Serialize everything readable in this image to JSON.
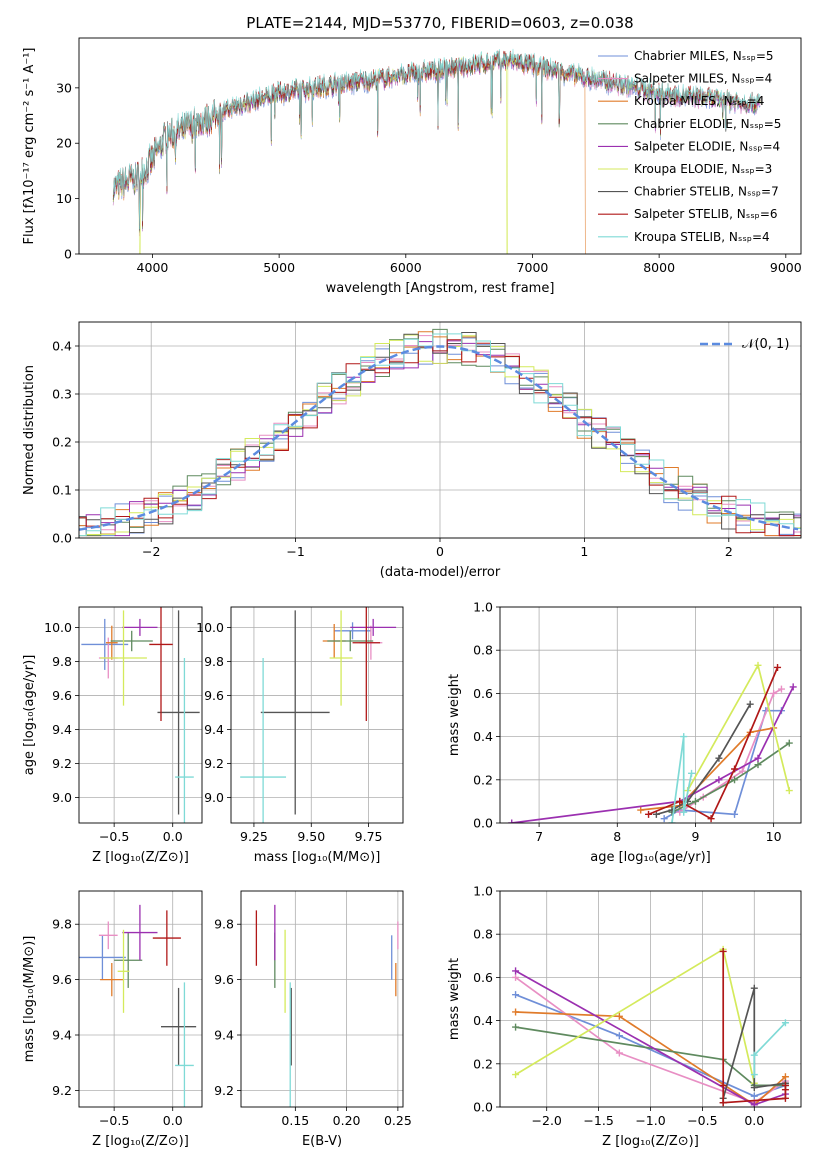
{
  "title": "PLATE=2144, MJD=53770, FIBERID=0603, z=0.038",
  "colors": {
    "chabrier_miles": "#6f8fd8",
    "salpeter_miles": "#e88fc4",
    "kroupa_miles": "#e07b2a",
    "chabrier_elodie": "#5f8a5f",
    "salpeter_elodie": "#9b30b0",
    "kroupa_elodie": "#d4ea5c",
    "chabrier_stelib": "#555555",
    "salpeter_stelib": "#b01818",
    "kroupa_stelib": "#7fdad6",
    "normal_curve": "#5b8be0"
  },
  "chart_data": [
    {
      "id": "spectrum",
      "type": "line",
      "xlabel": "wavelength [Angstrom, rest frame]",
      "ylabel": "Flux [fλ10⁻¹⁷ erg cm⁻² s⁻¹ A⁻¹]",
      "xlim": [
        3420,
        9120
      ],
      "ylim": [
        0,
        39
      ],
      "xticks": [
        "4000",
        "5000",
        "6000",
        "7000",
        "8000",
        "9000"
      ],
      "yticks": [
        "0",
        "10",
        "20",
        "30"
      ],
      "legend_position": "top-right",
      "legend": [
        "Chabrier MILES, Nₛₛₚ=5",
        "Salpeter MILES, Nₛₛₚ=4",
        "Kroupa MILES, Nₛₛₚ=4",
        "Chabrier ELODIE, Nₛₛₚ=5",
        "Salpeter ELODIE, Nₛₛₚ=4",
        "Kroupa ELODIE, Nₛₛₚ=3",
        "Chabrier STELIB, Nₛₛₚ=7",
        "Salpeter STELIB, Nₛₛₚ=6",
        "Kroupa STELIB, Nₛₛₚ=4"
      ],
      "continuum": {
        "x": [
          3700,
          3800,
          3900,
          4000,
          4100,
          4300,
          4500,
          4700,
          5000,
          5300,
          5600,
          5900,
          6200,
          6500,
          6800,
          7000,
          7200,
          7400,
          7600,
          7800,
          8000,
          8200,
          8400,
          8600,
          8800
        ],
        "y": [
          12,
          13,
          14,
          17,
          21,
          23,
          25,
          27,
          29,
          30,
          31,
          32,
          33,
          34,
          35,
          34,
          33,
          32,
          31,
          30,
          29,
          28.5,
          28,
          27.5,
          27
        ]
      },
      "cutoffs": [
        {
          "series": "Kroupa ELODIE",
          "x": 3900
        },
        {
          "series": "Kroupa ELODIE",
          "x": 6800
        },
        {
          "series": "Kroupa MILES",
          "x": 7420
        }
      ]
    },
    {
      "id": "residuals",
      "type": "line",
      "xlabel": "(data-model)/error",
      "ylabel": "Normed distribution",
      "xlim": [
        -2.5,
        2.5
      ],
      "ylim": [
        0,
        0.45
      ],
      "xticks": [
        "−2",
        "−1",
        "0",
        "1",
        "2"
      ],
      "yticks": [
        "0.0",
        "0.1",
        "0.2",
        "0.3",
        "0.4"
      ],
      "legend": [
        "𝒩(0, 1)"
      ],
      "legend_position": "top-right",
      "bin_width": 0.1,
      "grid": true
    },
    {
      "id": "age_vs_Z",
      "type": "scatter",
      "xlabel": "Z [log₁₀(Z/Z⊙)]",
      "ylabel": "age  [log₁₀(age/yr)]",
      "xlim": [
        -0.8,
        0.25
      ],
      "ylim": [
        8.85,
        10.12
      ],
      "xticks": [
        "−0.5",
        "0.0"
      ],
      "yticks": [
        "9.0",
        "9.2",
        "9.4",
        "9.6",
        "9.8",
        "10.0"
      ],
      "grid": true,
      "points": [
        {
          "series": "Chabrier MILES",
          "x": -0.58,
          "y": 9.9,
          "xerr": 0.2,
          "yerr": 0.15
        },
        {
          "series": "Salpeter MILES",
          "x": -0.55,
          "y": 9.82,
          "xerr": 0.08,
          "yerr": 0.12
        },
        {
          "series": "Kroupa MILES",
          "x": -0.52,
          "y": 9.91,
          "xerr": 0.05,
          "yerr": 0.1
        },
        {
          "series": "Chabrier ELODIE",
          "x": -0.35,
          "y": 9.92,
          "xerr": 0.18,
          "yerr": 0.06
        },
        {
          "series": "Salpeter ELODIE",
          "x": -0.28,
          "y": 10.0,
          "xerr": 0.15,
          "yerr": 0.05
        },
        {
          "series": "Kroupa ELODIE",
          "x": -0.42,
          "y": 9.82,
          "xerr": 0.2,
          "yerr": 0.28
        },
        {
          "series": "Chabrier STELIB",
          "x": 0.05,
          "y": 9.5,
          "xerr": 0.18,
          "yerr": 0.6
        },
        {
          "series": "Salpeter STELIB",
          "x": -0.1,
          "y": 9.9,
          "xerr": 0.1,
          "yerr": 0.45
        },
        {
          "series": "Kroupa STELIB",
          "x": 0.1,
          "y": 9.12,
          "xerr": 0.08,
          "yerr": 0.7
        }
      ]
    },
    {
      "id": "age_vs_mass",
      "type": "scatter",
      "xlabel": "mass [log₁₀(M/M⊙)]",
      "ylabel": "",
      "xlim": [
        9.15,
        9.9
      ],
      "ylim": [
        8.85,
        10.12
      ],
      "xticks": [
        "9.25",
        "9.50",
        "9.75"
      ],
      "yticks": [
        "9.0",
        "9.2",
        "9.4",
        "9.6",
        "9.8",
        "10.0"
      ],
      "grid": true,
      "points": [
        {
          "series": "Chabrier MILES",
          "x": 9.68,
          "y": 9.98,
          "xerr": 0.08,
          "yerr": 0.05
        },
        {
          "series": "Salpeter MILES",
          "x": 9.76,
          "y": 9.91,
          "xerr": 0.05,
          "yerr": 0.1
        },
        {
          "series": "Kroupa MILES",
          "x": 9.6,
          "y": 9.92,
          "xerr": 0.05,
          "yerr": 0.1
        },
        {
          "series": "Chabrier ELODIE",
          "x": 9.67,
          "y": 9.92,
          "xerr": 0.1,
          "yerr": 0.06
        },
        {
          "series": "Salpeter ELODIE",
          "x": 9.77,
          "y": 10.0,
          "xerr": 0.1,
          "yerr": 0.05
        },
        {
          "series": "Kroupa ELODIE",
          "x": 9.63,
          "y": 9.82,
          "xerr": 0.05,
          "yerr": 0.28
        },
        {
          "series": "Chabrier STELIB",
          "x": 9.43,
          "y": 9.5,
          "xerr": 0.15,
          "yerr": 0.6
        },
        {
          "series": "Salpeter STELIB",
          "x": 9.74,
          "y": 9.91,
          "xerr": 0.06,
          "yerr": 0.46
        },
        {
          "series": "Kroupa STELIB",
          "x": 9.29,
          "y": 9.12,
          "xerr": 0.1,
          "yerr": 0.7
        }
      ]
    },
    {
      "id": "weight_vs_age",
      "type": "line",
      "xlabel": "age  [log₁₀(age/yr)]",
      "ylabel": "mass weight",
      "xlim": [
        6.5,
        10.35
      ],
      "ylim": [
        0,
        1
      ],
      "xticks": [
        "7",
        "8",
        "9",
        "10"
      ],
      "yticks": [
        "0.0",
        "0.2",
        "0.4",
        "0.6",
        "0.8",
        "1.0"
      ],
      "grid": true,
      "series": [
        {
          "name": "Chabrier MILES",
          "x": [
            8.6,
            8.8,
            9.5,
            9.9,
            10.1
          ],
          "y": [
            0.02,
            0.06,
            0.04,
            0.52,
            0.52
          ]
        },
        {
          "name": "Salpeter MILES",
          "x": [
            8.8,
            9.1,
            9.6,
            10.0,
            10.1
          ],
          "y": [
            0.05,
            0.12,
            0.24,
            0.6,
            0.62
          ]
        },
        {
          "name": "Kroupa MILES",
          "x": [
            8.3,
            8.8,
            9.7,
            10.0
          ],
          "y": [
            0.06,
            0.08,
            0.42,
            0.44
          ]
        },
        {
          "name": "Chabrier ELODIE",
          "x": [
            8.7,
            9.0,
            9.5,
            9.8,
            10.2
          ],
          "y": [
            0.05,
            0.1,
            0.2,
            0.27,
            0.37
          ]
        },
        {
          "name": "Salpeter ELODIE",
          "x": [
            6.65,
            8.8,
            9.3,
            9.8,
            10.25
          ],
          "y": [
            0.0,
            0.1,
            0.2,
            0.3,
            0.63
          ]
        },
        {
          "name": "Kroupa ELODIE",
          "x": [
            8.9,
            9.8,
            10.2
          ],
          "y": [
            0.15,
            0.73,
            0.15
          ]
        },
        {
          "name": "Chabrier STELIB",
          "x": [
            8.5,
            8.7,
            8.9,
            9.3,
            9.7
          ],
          "y": [
            0.04,
            0.06,
            0.1,
            0.3,
            0.55
          ]
        },
        {
          "name": "Salpeter STELIB",
          "x": [
            8.4,
            8.8,
            9.2,
            9.5,
            10.05
          ],
          "y": [
            0.04,
            0.1,
            0.02,
            0.25,
            0.72
          ]
        },
        {
          "name": "Kroupa STELIB",
          "x": [
            8.7,
            8.85,
            8.85,
            8.95
          ],
          "y": [
            0.0,
            0.4,
            0.05,
            0.23
          ]
        }
      ]
    },
    {
      "id": "mass_vs_Z",
      "type": "scatter",
      "xlabel": "Z [log₁₀(Z/Z⊙)]",
      "ylabel": "mass [log₁₀(M/M⊙)]",
      "xlim": [
        -0.8,
        0.25
      ],
      "ylim": [
        9.14,
        9.92
      ],
      "xticks": [
        "−0.5",
        "0.0"
      ],
      "yticks": [
        "9.2",
        "9.4",
        "9.6",
        "9.8"
      ],
      "grid": true,
      "points": [
        {
          "series": "Chabrier MILES",
          "x": -0.6,
          "y": 9.68,
          "xerr": 0.2,
          "yerr": 0.08
        },
        {
          "series": "Salpeter MILES",
          "x": -0.55,
          "y": 9.76,
          "xerr": 0.08,
          "yerr": 0.05
        },
        {
          "series": "Kroupa MILES",
          "x": -0.52,
          "y": 9.6,
          "xerr": 0.1,
          "yerr": 0.06
        },
        {
          "series": "Chabrier ELODIE",
          "x": -0.38,
          "y": 9.67,
          "xerr": 0.12,
          "yerr": 0.1
        },
        {
          "series": "Salpeter ELODIE",
          "x": -0.28,
          "y": 9.77,
          "xerr": 0.15,
          "yerr": 0.1
        },
        {
          "series": "Kroupa ELODIE",
          "x": -0.42,
          "y": 9.63,
          "xerr": 0.05,
          "yerr": 0.15
        },
        {
          "series": "Chabrier STELIB",
          "x": 0.05,
          "y": 9.43,
          "xerr": 0.15,
          "yerr": 0.14
        },
        {
          "series": "Salpeter STELIB",
          "x": -0.05,
          "y": 9.75,
          "xerr": 0.12,
          "yerr": 0.1
        },
        {
          "series": "Kroupa STELIB",
          "x": 0.1,
          "y": 9.29,
          "xerr": 0.08,
          "yerr": 0.3
        }
      ]
    },
    {
      "id": "mass_vs_ebv",
      "type": "scatter",
      "xlabel": "E(B-V)",
      "ylabel": "",
      "xlim": [
        0.097,
        0.255
      ],
      "ylim": [
        9.14,
        9.92
      ],
      "xticks": [
        "0.15",
        "0.20",
        "0.25"
      ],
      "yticks": [
        "9.2",
        "9.4",
        "9.6",
        "9.8"
      ],
      "grid": true,
      "points": [
        {
          "series": "Chabrier MILES",
          "x": 0.244,
          "y": 9.68,
          "xerr": 0.0,
          "yerr": 0.08
        },
        {
          "series": "Salpeter MILES",
          "x": 0.25,
          "y": 9.76,
          "xerr": 0.0,
          "yerr": 0.05
        },
        {
          "series": "Kroupa MILES",
          "x": 0.248,
          "y": 9.6,
          "xerr": 0.0,
          "yerr": 0.06
        },
        {
          "series": "Chabrier ELODIE",
          "x": 0.13,
          "y": 9.67,
          "xerr": 0.0,
          "yerr": 0.1
        },
        {
          "series": "Salpeter ELODIE",
          "x": 0.13,
          "y": 9.77,
          "xerr": 0.0,
          "yerr": 0.1
        },
        {
          "series": "Kroupa ELODIE",
          "x": 0.14,
          "y": 9.63,
          "xerr": 0.0,
          "yerr": 0.15
        },
        {
          "series": "Chabrier STELIB",
          "x": 0.146,
          "y": 9.43,
          "xerr": 0.0,
          "yerr": 0.14
        },
        {
          "series": "Salpeter STELIB",
          "x": 0.112,
          "y": 9.75,
          "xerr": 0.0,
          "yerr": 0.1
        },
        {
          "series": "Kroupa STELIB",
          "x": 0.145,
          "y": 9.29,
          "xerr": 0.0,
          "yerr": 0.3
        }
      ]
    },
    {
      "id": "weight_vs_Z",
      "type": "line",
      "xlabel": "Z [log₁₀(Z/Z⊙)]",
      "ylabel": "mass weight",
      "xlim": [
        -2.45,
        0.45
      ],
      "ylim": [
        0,
        1
      ],
      "xticks": [
        "−2.0",
        "−1.5",
        "−1.0",
        "−0.5",
        "0.0"
      ],
      "yticks": [
        "0.0",
        "0.2",
        "0.4",
        "0.6",
        "0.8",
        "1.0"
      ],
      "grid": true,
      "series": [
        {
          "name": "Chabrier MILES",
          "x": [
            -2.3,
            -1.3,
            0.0,
            0.3
          ],
          "y": [
            0.52,
            0.33,
            0.05,
            0.1
          ]
        },
        {
          "name": "Salpeter MILES",
          "x": [
            -2.3,
            -1.3,
            0.0,
            0.3
          ],
          "y": [
            0.6,
            0.25,
            0.02,
            0.12
          ]
        },
        {
          "name": "Kroupa MILES",
          "x": [
            -2.3,
            -1.3,
            0.0,
            0.3
          ],
          "y": [
            0.44,
            0.42,
            0.01,
            0.14
          ]
        },
        {
          "name": "Chabrier ELODIE",
          "x": [
            -2.3,
            -0.3,
            0.0,
            0.3
          ],
          "y": [
            0.37,
            0.22,
            0.1,
            0.1
          ]
        },
        {
          "name": "Salpeter ELODIE",
          "x": [
            -2.3,
            0.0,
            0.3
          ],
          "y": [
            0.63,
            0.01,
            0.06
          ]
        },
        {
          "name": "Kroupa ELODIE",
          "x": [
            -2.3,
            -0.3,
            0.0
          ],
          "y": [
            0.15,
            0.73,
            0.11
          ]
        },
        {
          "name": "Chabrier STELIB",
          "x": [
            -0.3,
            -0.3,
            0.0,
            0.0,
            0.3
          ],
          "y": [
            0.02,
            0.04,
            0.55,
            0.09,
            0.11
          ]
        },
        {
          "name": "Salpeter STELIB",
          "x": [
            -0.3,
            -0.3,
            -0.3,
            0.3,
            0.3,
            0.3
          ],
          "y": [
            0.72,
            0.1,
            0.02,
            0.04,
            0.08,
            0.1
          ]
        },
        {
          "name": "Kroupa STELIB",
          "x": [
            0.0,
            0.0,
            0.3
          ],
          "y": [
            0.15,
            0.24,
            0.39
          ]
        }
      ]
    }
  ]
}
